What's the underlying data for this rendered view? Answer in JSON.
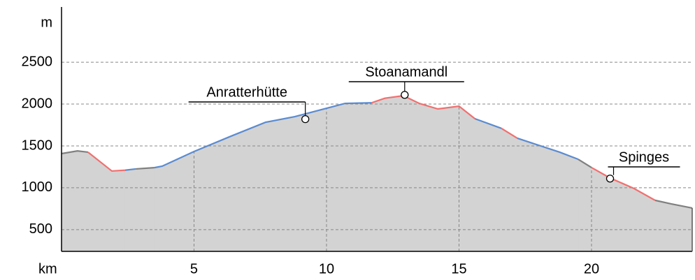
{
  "chart_data": {
    "type": "elevation-profile",
    "y_label": "m",
    "x_label": "km",
    "xlim": [
      0,
      23.8
    ],
    "ylim": [
      240,
      3160
    ],
    "xticks": [
      5,
      10,
      15,
      20
    ],
    "yticks": [
      500,
      1000,
      1500,
      2000,
      2500
    ],
    "grid": true,
    "fill_color": "#d3d3d3",
    "series": [
      {
        "color": "#808080",
        "x": [
          0,
          0.6,
          1.0
        ],
        "values": [
          1408,
          1440,
          1425
        ]
      },
      {
        "color": "#f07070",
        "x": [
          1.0,
          1.5,
          1.9,
          2.4
        ],
        "values": [
          1425,
          1300,
          1200,
          1210
        ]
      },
      {
        "color": "#5b8bd0",
        "x": [
          2.4,
          2.8
        ],
        "values": [
          1210,
          1225
        ]
      },
      {
        "color": "#808080",
        "x": [
          2.8,
          3.5
        ],
        "values": [
          1225,
          1240
        ]
      },
      {
        "color": "#5b8bd0",
        "x": [
          3.5,
          3.8,
          5,
          6.4,
          7.7,
          8.8,
          9.2,
          10,
          10.7,
          11.7
        ],
        "values": [
          1240,
          1258,
          1433,
          1617,
          1783,
          1850,
          1883,
          1950,
          2008,
          2015
        ]
      },
      {
        "color": "#f07070",
        "x": [
          11.7,
          12.2,
          12.9,
          13.5,
          14.2,
          15,
          15.6
        ],
        "values": [
          2015,
          2070,
          2100,
          2008,
          1942,
          1975,
          1825
        ]
      },
      {
        "color": "#5b8bd0",
        "x": [
          15.6,
          16.6
        ],
        "values": [
          1825,
          1710
        ]
      },
      {
        "color": "#f07070",
        "x": [
          16.6,
          17.2
        ],
        "values": [
          1710,
          1592
        ]
      },
      {
        "color": "#5b8bd0",
        "x": [
          17.2,
          18.8,
          19.5
        ],
        "values": [
          1592,
          1425,
          1340
        ]
      },
      {
        "color": "#808080",
        "x": [
          19.5,
          20
        ],
        "values": [
          1340,
          1242
        ]
      },
      {
        "color": "#f07070",
        "x": [
          20,
          20.7,
          21.6,
          22.4
        ],
        "values": [
          1242,
          1117,
          992,
          850
        ]
      },
      {
        "color": "#808080",
        "x": [
          22.4,
          23,
          23.8
        ],
        "values": [
          850,
          808,
          758
        ]
      }
    ],
    "annotations": [
      {
        "label": "Anratterhütte",
        "x": 9.2,
        "y": 1820
      },
      {
        "label": "Stoanamandl",
        "x": 12.95,
        "y": 2110
      },
      {
        "label": "Spinges",
        "x": 20.7,
        "y": 1110
      }
    ]
  }
}
